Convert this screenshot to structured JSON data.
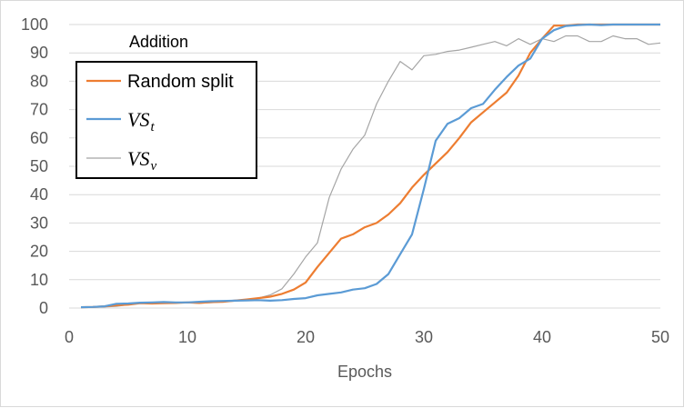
{
  "chart_data": {
    "type": "line",
    "title": "Addition",
    "xlabel": "Epochs",
    "ylabel": "",
    "xlim": [
      0,
      50
    ],
    "ylim": [
      0,
      100
    ],
    "x_ticks": [
      "0",
      "10",
      "20",
      "30",
      "40",
      "50"
    ],
    "y_ticks": [
      "0",
      "10",
      "20",
      "30",
      "40",
      "50",
      "60",
      "70",
      "80",
      "90",
      "100"
    ],
    "grid": "horizontal",
    "legend_position": "top-left",
    "series": [
      {
        "name": "Random split",
        "color": "#ED7D31",
        "x": [
          1,
          2,
          3,
          4,
          5,
          6,
          7,
          8,
          9,
          10,
          11,
          12,
          13,
          14,
          15,
          16,
          17,
          18,
          19,
          20,
          21,
          22,
          23,
          24,
          25,
          26,
          27,
          28,
          29,
          30,
          31,
          32,
          33,
          34,
          35,
          36,
          37,
          38,
          39,
          40,
          41,
          42,
          43,
          44,
          45,
          46,
          47,
          48,
          49,
          50
        ],
        "values": [
          0.3,
          0.4,
          0.6,
          1.0,
          1.2,
          1.7,
          1.6,
          1.7,
          1.8,
          2.0,
          1.8,
          2.1,
          2.2,
          2.6,
          3.0,
          3.5,
          4.0,
          5.0,
          6.5,
          9.0,
          14.5,
          19.5,
          24.5,
          26,
          28.5,
          30,
          33,
          37,
          42.5,
          47,
          51,
          55,
          60,
          65.5,
          69,
          72.5,
          76,
          82,
          90,
          95,
          99.6,
          99.6,
          100,
          100,
          100,
          100,
          100,
          100,
          100,
          100
        ]
      },
      {
        "name": "VS_t",
        "label_main": "VS",
        "label_sub": "t",
        "color": "#5B9BD5",
        "x": [
          1,
          2,
          3,
          4,
          5,
          6,
          7,
          8,
          9,
          10,
          11,
          12,
          13,
          14,
          15,
          16,
          17,
          18,
          19,
          20,
          21,
          22,
          23,
          24,
          25,
          26,
          27,
          28,
          29,
          30,
          31,
          32,
          33,
          34,
          35,
          36,
          37,
          38,
          39,
          40,
          41,
          42,
          43,
          44,
          45,
          46,
          47,
          48,
          49,
          50
        ],
        "values": [
          0.3,
          0.4,
          0.6,
          1.5,
          1.6,
          1.9,
          2.0,
          2.1,
          2.0,
          2.0,
          2.2,
          2.4,
          2.5,
          2.6,
          2.7,
          2.8,
          2.6,
          2.8,
          3.2,
          3.5,
          4.5,
          5.0,
          5.5,
          6.5,
          7.0,
          8.5,
          12,
          19,
          26,
          42,
          59,
          65,
          67,
          70.5,
          72,
          77,
          81.5,
          85.5,
          88,
          95,
          98,
          99.5,
          99.8,
          100,
          99.8,
          100,
          100,
          100,
          100,
          100
        ]
      },
      {
        "name": "VS_v",
        "label_main": "VS",
        "label_sub": "v",
        "color": "#A5A5A5",
        "x": [
          1,
          2,
          3,
          4,
          5,
          6,
          7,
          8,
          9,
          10,
          11,
          12,
          13,
          14,
          15,
          16,
          17,
          18,
          19,
          20,
          21,
          22,
          23,
          24,
          25,
          26,
          27,
          28,
          29,
          30,
          31,
          32,
          33,
          34,
          35,
          36,
          37,
          38,
          39,
          40,
          41,
          42,
          43,
          44,
          45,
          46,
          47,
          48,
          49,
          50
        ],
        "values": [
          0.3,
          0.3,
          0.4,
          0.6,
          1.2,
          2.0,
          1.8,
          2.0,
          1.8,
          1.9,
          1.7,
          1.9,
          2.2,
          2.5,
          2.9,
          3.5,
          4.6,
          6.8,
          12,
          18,
          23,
          39,
          49,
          56,
          61,
          72,
          80,
          87,
          84,
          89,
          89.5,
          90.5,
          91,
          92,
          93,
          94,
          92.5,
          95,
          93,
          95,
          94,
          96,
          96,
          94,
          94,
          96,
          95,
          95,
          93,
          93.5
        ]
      }
    ]
  }
}
